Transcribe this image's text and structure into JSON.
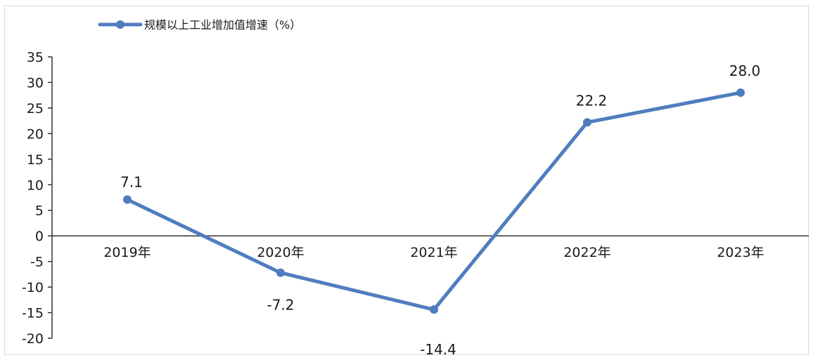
{
  "chart_data": {
    "type": "line",
    "categories": [
      "2019年",
      "2020年",
      "2021年",
      "2022年",
      "2023年"
    ],
    "series": [
      {
        "name": "规模以上工业增加值增速（%）",
        "values": [
          7.1,
          -7.2,
          -14.4,
          22.2,
          28.0
        ],
        "labels": [
          "7.1",
          "-7.2",
          "-14.4",
          "22.2",
          "28.0"
        ],
        "color": "#4f7dbf"
      }
    ],
    "yticks": [
      "35",
      "30",
      "25",
      "20",
      "15",
      "10",
      "5",
      "0",
      "-5",
      "-10",
      "-15",
      "-20"
    ],
    "ylim": [
      -20,
      35
    ],
    "legend": "top-left",
    "grid": false
  }
}
